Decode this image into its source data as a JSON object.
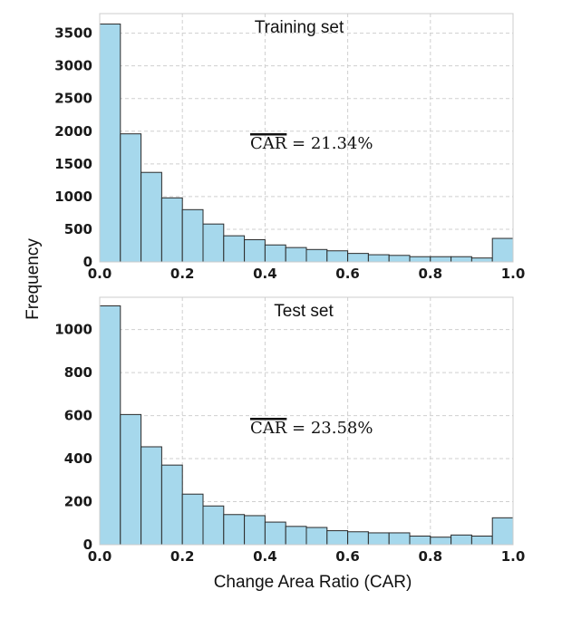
{
  "chart_data": {
    "type": "bar",
    "ylabel": "Frequency",
    "xlabel": "Change Area Ratio (CAR)",
    "bar_color": "#a6d8ec",
    "edge_color": "#2b2b2b",
    "panels": [
      {
        "title": "Training set",
        "annotation": {
          "symbol": "CAR",
          "text": " = 21.34%"
        },
        "xlim": [
          0,
          1
        ],
        "ylim": [
          0,
          3800
        ],
        "xticks": [
          0.0,
          0.2,
          0.4,
          0.6,
          0.8,
          1.0
        ],
        "xtick_labels": [
          "0.0",
          "0.2",
          "0.4",
          "0.6",
          "0.8",
          "1.0"
        ],
        "yticks": [
          0,
          500,
          1000,
          1500,
          2000,
          2500,
          3000,
          3500
        ],
        "ytick_labels": [
          "0",
          "500",
          "1000",
          "1500",
          "2000",
          "2500",
          "3000",
          "3500"
        ],
        "bin_edges": [
          0.0,
          0.05,
          0.1,
          0.15,
          0.2,
          0.25,
          0.3,
          0.35,
          0.4,
          0.45,
          0.5,
          0.55,
          0.6,
          0.65,
          0.7,
          0.75,
          0.8,
          0.85,
          0.9,
          0.95,
          1.0
        ],
        "values": [
          3640,
          1960,
          1370,
          980,
          800,
          580,
          400,
          340,
          260,
          220,
          190,
          170,
          130,
          110,
          100,
          80,
          80,
          80,
          60,
          360
        ]
      },
      {
        "title": "Test set",
        "annotation": {
          "symbol": "CAR",
          "text": " = 23.58%"
        },
        "xlim": [
          0,
          1
        ],
        "ylim": [
          0,
          1150
        ],
        "xticks": [
          0.0,
          0.2,
          0.4,
          0.6,
          0.8,
          1.0
        ],
        "xtick_labels": [
          "0.0",
          "0.2",
          "0.4",
          "0.6",
          "0.8",
          "1.0"
        ],
        "yticks": [
          0,
          200,
          400,
          600,
          800,
          1000
        ],
        "ytick_labels": [
          "0",
          "200",
          "400",
          "600",
          "800",
          "1000"
        ],
        "bin_edges": [
          0.0,
          0.05,
          0.1,
          0.15,
          0.2,
          0.25,
          0.3,
          0.35,
          0.4,
          0.45,
          0.5,
          0.55,
          0.6,
          0.65,
          0.7,
          0.75,
          0.8,
          0.85,
          0.9,
          0.95,
          1.0
        ],
        "values": [
          1110,
          605,
          455,
          370,
          235,
          180,
          140,
          135,
          105,
          85,
          80,
          65,
          60,
          55,
          55,
          40,
          35,
          45,
          40,
          125
        ]
      }
    ]
  }
}
